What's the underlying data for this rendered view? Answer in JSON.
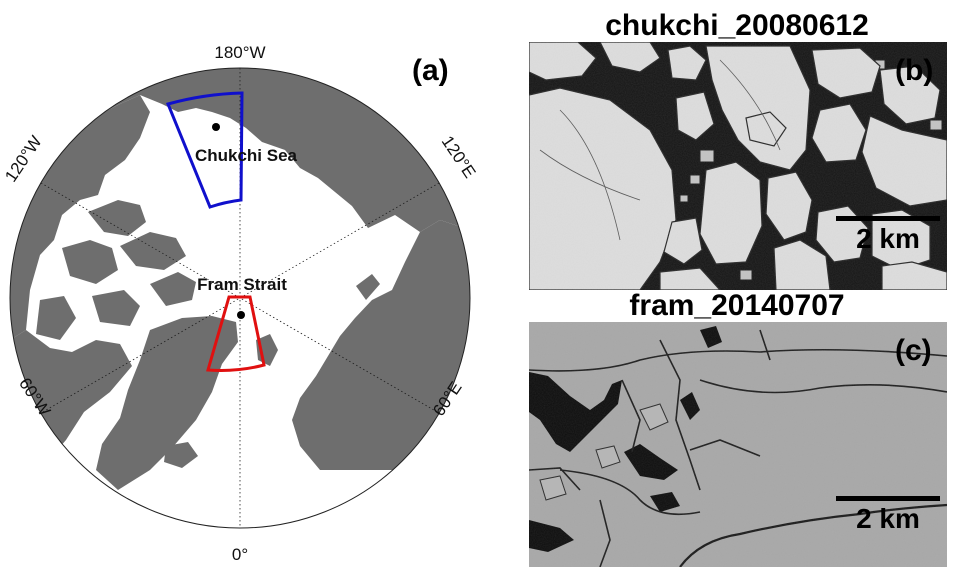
{
  "map": {
    "panel_label": "(a)",
    "lon_labels": {
      "top": "180°W",
      "upper_left": "120°W",
      "upper_right": "120°E",
      "lower_left": "60°W",
      "lower_right": "60°E",
      "bottom": "0°"
    },
    "regions": [
      {
        "name": "Chukchi Sea",
        "outline_color": "#1010cc"
      },
      {
        "name": "Fram Strait",
        "outline_color": "#e01010"
      }
    ],
    "land_color": "#6e6e6e",
    "ocean_color": "#ffffff"
  },
  "images": [
    {
      "title": "chukchi_20080612",
      "panel_label": "(b)",
      "scale_label": "2 km"
    },
    {
      "title": "fram_20140707",
      "panel_label": "(c)",
      "scale_label": "2 km"
    }
  ]
}
